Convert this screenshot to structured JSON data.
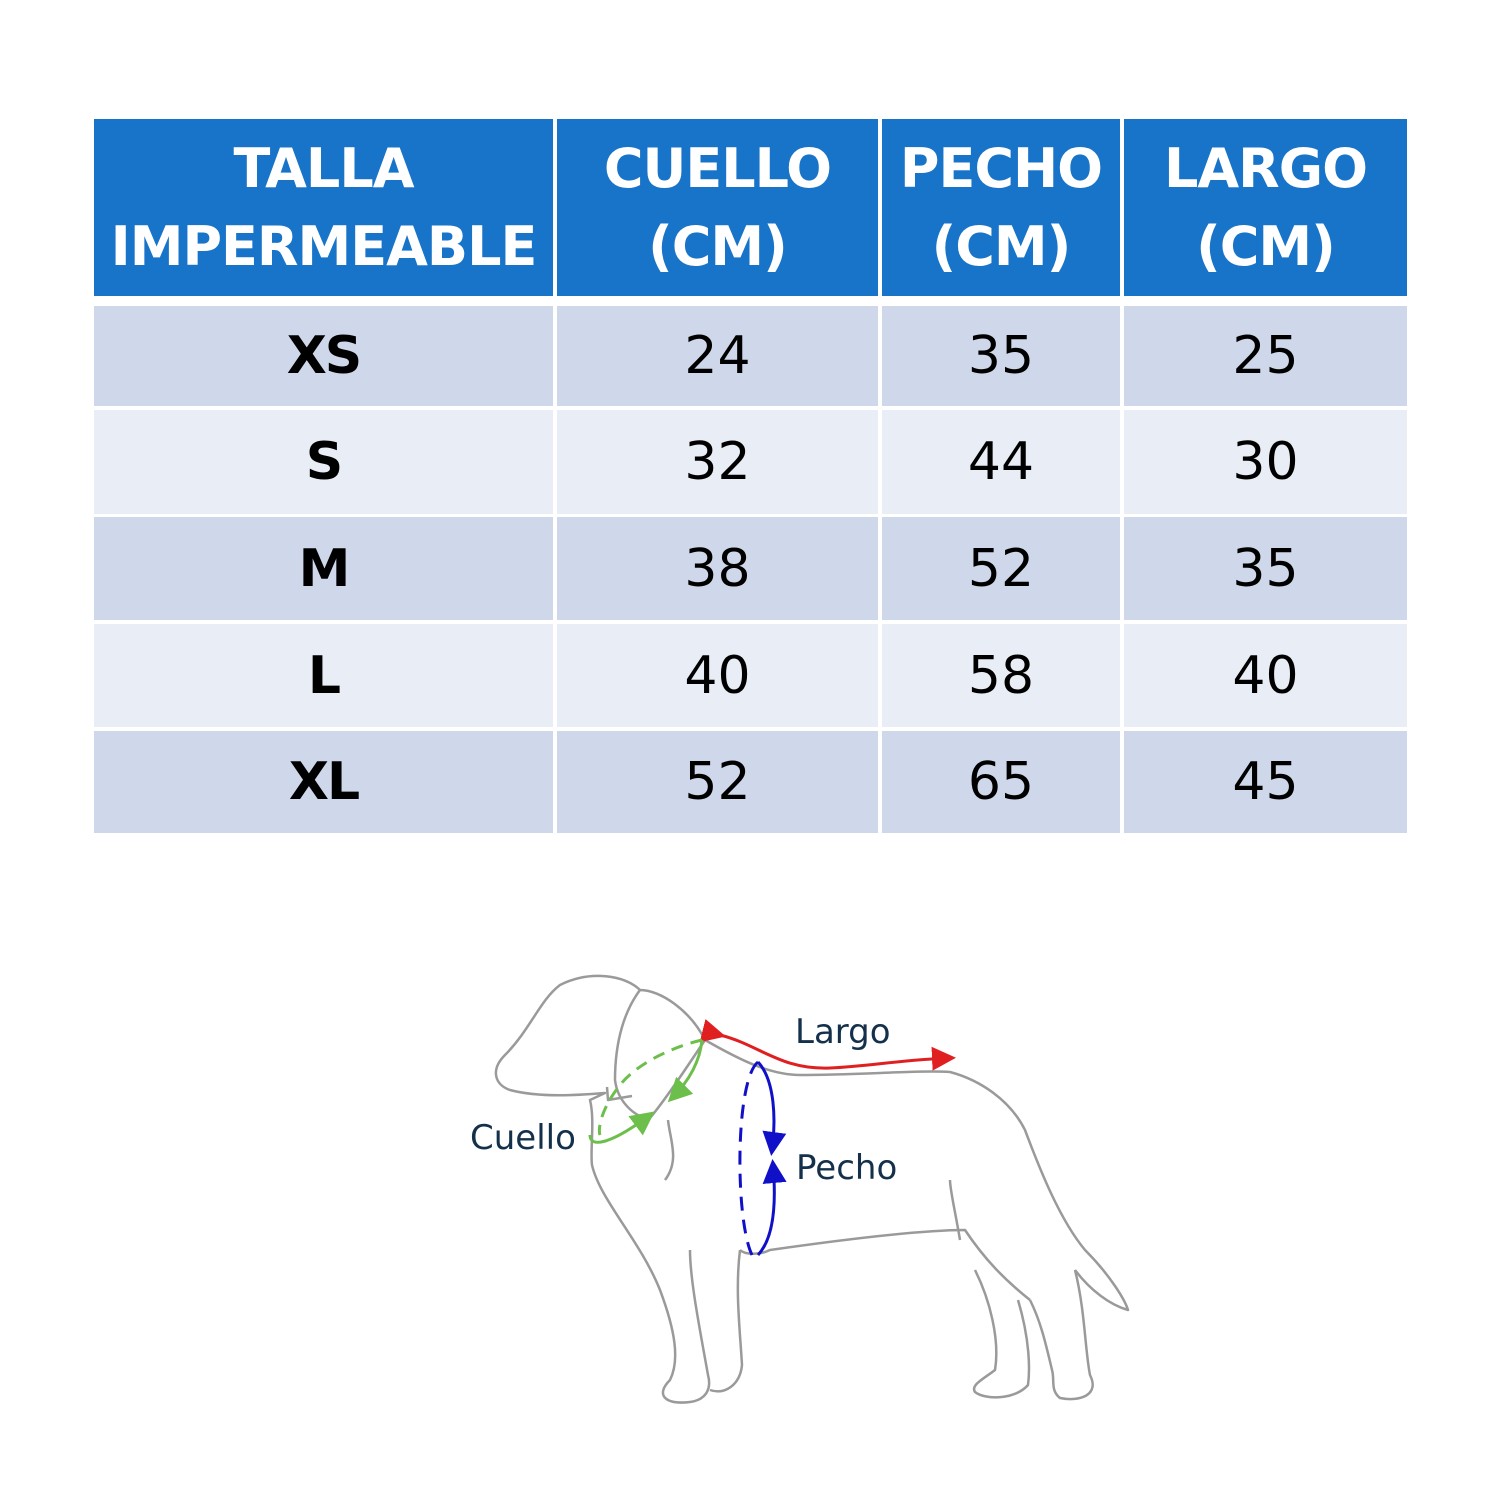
{
  "table": {
    "headers": [
      {
        "line1": "TALLA",
        "line2": "IMPERMEABLE"
      },
      {
        "line1": "CUELLO",
        "line2": "(CM)"
      },
      {
        "line1": "PECHO",
        "line2": "(CM)"
      },
      {
        "line1": "LARGO",
        "line2": "(CM)"
      }
    ],
    "rows": [
      {
        "size": "XS",
        "cuello": "24",
        "pecho": "35",
        "largo": "25"
      },
      {
        "size": "S",
        "cuello": "32",
        "pecho": "44",
        "largo": "30"
      },
      {
        "size": "M",
        "cuello": "38",
        "pecho": "52",
        "largo": "35"
      },
      {
        "size": "L",
        "cuello": "40",
        "pecho": "58",
        "largo": "40"
      },
      {
        "size": "XL",
        "cuello": "52",
        "pecho": "65",
        "largo": "45"
      }
    ],
    "colors": {
      "header": "#1874c8",
      "row_odd": "#cfd8ea",
      "row_even": "#e9edf5"
    }
  },
  "diagram": {
    "labels": {
      "largo": "Largo",
      "cuello": "Cuello",
      "pecho": "Pecho"
    },
    "colors": {
      "largo": "#e02020",
      "cuello": "#6cbf4a",
      "pecho": "#1010c8",
      "outline": "#9a9a9a"
    }
  }
}
